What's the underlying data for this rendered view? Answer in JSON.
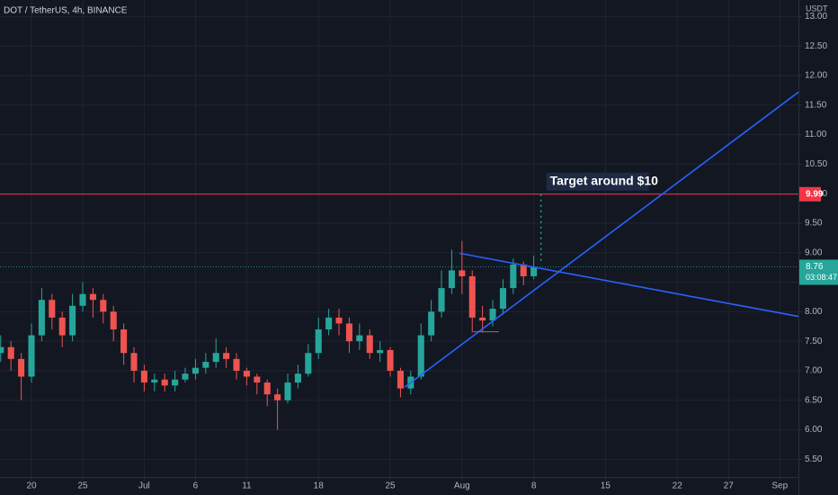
{
  "chart_data": {
    "type": "candlestick",
    "title": "DOT / TetherUS, 4h, BINANCE",
    "y_unit": "USDT",
    "annotation": "Target around $10",
    "up_color": "#26a69a",
    "down_color": "#ef5350",
    "grid": true,
    "xlim": [
      -3.07,
      74.82
    ],
    "xticks": [
      {
        "value": 0,
        "label": "20"
      },
      {
        "value": 5,
        "label": "25"
      },
      {
        "value": 11,
        "label": "Jul"
      },
      {
        "value": 16,
        "label": "6"
      },
      {
        "value": 21,
        "label": "11"
      },
      {
        "value": 28,
        "label": "18"
      },
      {
        "value": 35,
        "label": "25"
      },
      {
        "value": 42,
        "label": "Aug"
      },
      {
        "value": 49,
        "label": "8"
      },
      {
        "value": 56,
        "label": "15"
      },
      {
        "value": 63,
        "label": "22"
      },
      {
        "value": 68,
        "label": "27"
      },
      {
        "value": 73,
        "label": "Sep"
      }
    ],
    "ylim": [
      5.2,
      13.28
    ],
    "yticks": [
      {
        "value": 5.5,
        "label": "5.50"
      },
      {
        "value": 6,
        "label": "6.00"
      },
      {
        "value": 6.5,
        "label": "6.50"
      },
      {
        "value": 7,
        "label": "7.00"
      },
      {
        "value": 7.5,
        "label": "7.50"
      },
      {
        "value": 8,
        "label": "8.00"
      },
      {
        "value": 8.5,
        "label": "8.50"
      },
      {
        "value": 9,
        "label": "9.00"
      },
      {
        "value": 9.5,
        "label": "9.50"
      },
      {
        "value": 10,
        "label": "10.00"
      },
      {
        "value": 10.5,
        "label": "10.50"
      },
      {
        "value": 11,
        "label": "11.00"
      },
      {
        "value": 11.5,
        "label": "11.50"
      },
      {
        "value": 12,
        "label": "12.00"
      },
      {
        "value": 12.5,
        "label": "12.50"
      },
      {
        "value": 13,
        "label": "13.00"
      }
    ],
    "x": [
      -3,
      -2,
      -1,
      0,
      1,
      2,
      3,
      4,
      5,
      6,
      7,
      8,
      9,
      10,
      11,
      12,
      13,
      14,
      15,
      16,
      17,
      18,
      19,
      20,
      21,
      22,
      23,
      24,
      25,
      26,
      27,
      28,
      29,
      30,
      31,
      32,
      33,
      34,
      35,
      36,
      37,
      38,
      39,
      40,
      41,
      42,
      43,
      44,
      45,
      46,
      47,
      48,
      49
    ],
    "open": [
      7.3,
      7.4,
      7.2,
      6.9,
      7.6,
      8.2,
      7.9,
      7.6,
      8.1,
      8.3,
      8.2,
      8.0,
      7.7,
      7.3,
      7.0,
      6.8,
      6.85,
      6.75,
      6.85,
      6.95,
      7.05,
      7.15,
      7.3,
      7.2,
      7.0,
      6.9,
      6.8,
      6.6,
      6.5,
      6.8,
      6.95,
      7.3,
      7.7,
      7.9,
      7.8,
      7.5,
      7.6,
      7.3,
      7.35,
      7.0,
      6.7,
      6.9,
      7.6,
      8.0,
      8.4,
      8.7,
      8.6,
      7.9,
      7.85,
      8.05,
      8.4,
      8.8,
      8.6
    ],
    "high": [
      7.6,
      7.5,
      7.3,
      7.8,
      8.4,
      8.3,
      8.0,
      8.3,
      8.5,
      8.4,
      8.3,
      8.1,
      7.8,
      7.4,
      7.1,
      6.95,
      6.95,
      7.0,
      7.05,
      7.2,
      7.3,
      7.55,
      7.4,
      7.3,
      7.05,
      6.95,
      6.85,
      6.7,
      6.95,
      7.1,
      7.45,
      7.9,
      8.05,
      8.05,
      7.9,
      7.8,
      7.7,
      7.5,
      7.4,
      7.05,
      7.0,
      7.8,
      8.2,
      8.7,
      9.05,
      9.2,
      8.7,
      8.1,
      8.2,
      8.55,
      8.9,
      8.85,
      8.95
    ],
    "low": [
      7.15,
      7.0,
      6.5,
      6.8,
      7.5,
      7.7,
      7.4,
      7.5,
      8.0,
      7.9,
      7.8,
      7.5,
      7.1,
      6.8,
      6.65,
      6.65,
      6.65,
      6.65,
      6.8,
      6.85,
      6.95,
      7.05,
      7.05,
      6.85,
      6.75,
      6.6,
      6.4,
      6.0,
      6.45,
      6.7,
      6.9,
      7.2,
      7.6,
      7.6,
      7.3,
      7.35,
      7.2,
      7.15,
      6.9,
      6.55,
      6.6,
      6.85,
      7.5,
      7.9,
      8.3,
      8.3,
      7.65,
      7.65,
      7.75,
      7.95,
      8.3,
      8.45,
      8.55
    ],
    "close": [
      7.4,
      7.2,
      6.9,
      7.6,
      8.2,
      7.9,
      7.6,
      8.1,
      8.3,
      8.2,
      8.0,
      7.7,
      7.3,
      7.0,
      6.8,
      6.85,
      6.75,
      6.85,
      6.95,
      7.05,
      7.15,
      7.3,
      7.2,
      7.0,
      6.9,
      6.8,
      6.6,
      6.5,
      6.8,
      6.95,
      7.3,
      7.7,
      7.9,
      7.8,
      7.5,
      7.6,
      7.3,
      7.35,
      7.0,
      6.7,
      6.9,
      7.6,
      8.0,
      8.4,
      8.7,
      8.6,
      7.9,
      7.85,
      8.05,
      8.4,
      8.8,
      8.6,
      8.76
    ],
    "trend_lines": [
      {
        "color": "#2962ff",
        "x": [
          36.4,
          74.82
        ],
        "y": [
          6.72,
          11.72
        ]
      },
      {
        "color": "#2962ff",
        "x": [
          41.75,
          74.82
        ],
        "y": [
          8.99,
          7.92
        ]
      },
      {
        "color": "#787b86",
        "x": [
          43.1,
          45.6
        ],
        "y": [
          7.66,
          7.66
        ]
      }
    ],
    "price_line": {
      "value": 9.99,
      "color": "#f23645"
    },
    "last_price": {
      "value": 8.76,
      "countdown": "03:08:47",
      "color": "#26a69a"
    },
    "target_marker": {
      "x": 49.7,
      "y": [
        9.99,
        8.8
      ]
    }
  }
}
